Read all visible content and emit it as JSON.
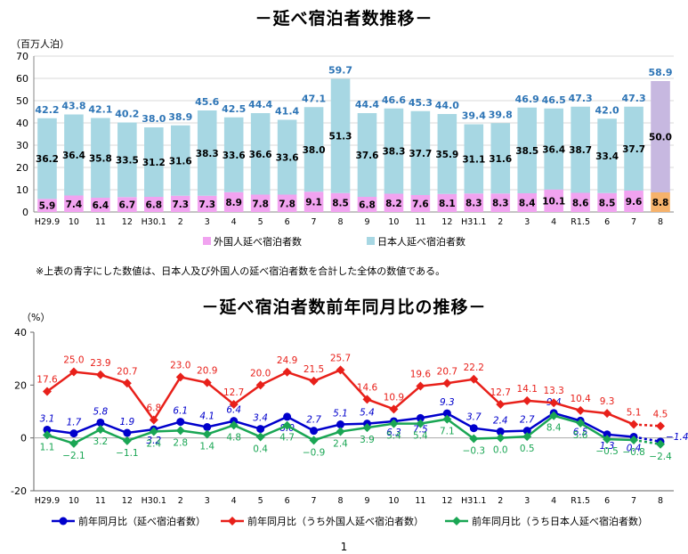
{
  "page_title_1": "－延べ宿泊者数推移－",
  "page_title_2": "－延べ宿泊者数前年同月比の推移－",
  "note": "※上表の青字にした数値は、日本人及び外国人の延べ宿泊者数を合計した全体の数値である。",
  "page_number": "1",
  "colors": {
    "japanese_bar": "#a7d7e3",
    "foreign_bar": "#f1a3f0",
    "japanese_bar_prelim": "#c7b8e0",
    "foreign_bar_prelim": "#f6b26b",
    "total_label": "#2e75b6",
    "series_total": "#0000cc",
    "series_foreign": "#e8201a",
    "series_japanese": "#1aa654"
  },
  "chart_data": [
    {
      "type": "bar",
      "stacked": true,
      "unit_label": "（百万人泊）",
      "categories": [
        "H29.9",
        "10",
        "11",
        "12",
        "H30.1",
        "2",
        "3",
        "4",
        "5",
        "6",
        "7",
        "8",
        "9",
        "10",
        "11",
        "12",
        "H31.1",
        "2",
        "3",
        "4",
        "R1.5",
        "6",
        "7",
        "8"
      ],
      "ylim": [
        0,
        70
      ],
      "yticks": [
        "0",
        "10",
        "20",
        "30",
        "40",
        "50",
        "60",
        "70"
      ],
      "series": [
        {
          "name": "外国人延べ宿泊者数",
          "values": [
            5.9,
            7.4,
            6.4,
            6.7,
            6.8,
            7.3,
            7.3,
            8.9,
            7.8,
            7.8,
            9.1,
            8.5,
            6.8,
            8.2,
            7.6,
            8.1,
            8.3,
            8.3,
            8.4,
            10.1,
            8.6,
            8.5,
            9.6,
            8.8
          ]
        },
        {
          "name": "日本人延べ宿泊者数",
          "values": [
            36.2,
            36.4,
            35.8,
            33.5,
            31.2,
            31.6,
            38.3,
            33.6,
            36.6,
            33.6,
            38.0,
            51.3,
            37.6,
            38.3,
            37.7,
            35.9,
            31.1,
            31.6,
            38.5,
            36.4,
            38.7,
            33.4,
            37.7,
            50.0
          ]
        }
      ],
      "totals": [
        42.2,
        43.8,
        42.1,
        40.2,
        38.0,
        38.9,
        45.6,
        42.5,
        44.4,
        41.4,
        47.1,
        59.7,
        44.4,
        46.6,
        45.3,
        44.0,
        39.4,
        39.8,
        46.9,
        46.5,
        47.3,
        42.0,
        47.3,
        58.9
      ],
      "labels": {
        "foreign": [
          "5.9",
          "7.4",
          "6.4",
          "6.7",
          "6.8",
          "7.3",
          "7.3",
          "8.9",
          "7.8",
          "7.8",
          "9.1",
          "8.5",
          "6.8",
          "8.2",
          "7.6",
          "8.1",
          "8.3",
          "8.3",
          "8.4",
          "10.1",
          "8.6",
          "8.5",
          "9.6",
          "8.8"
        ],
        "japanese": [
          "36.2",
          "36.4",
          "35.8",
          "33.5",
          "31.2",
          "31.6",
          "38.3",
          "33.6",
          "36.6",
          "33.6",
          "38.0",
          "51.3",
          "37.6",
          "38.3",
          "37.7",
          "35.9",
          "31.1",
          "31.6",
          "38.5",
          "36.4",
          "38.7",
          "33.4",
          "37.7",
          "50.0"
        ],
        "total": [
          "42.2",
          "43.8",
          "42.1",
          "40.2",
          "38.0",
          "38.9",
          "45.6",
          "42.5",
          "44.4",
          "41.4",
          "47.1",
          "59.7",
          "44.4",
          "46.6",
          "45.3",
          "44.0",
          "39.4",
          "39.8",
          "46.9",
          "46.5",
          "47.3",
          "42.0",
          "47.3",
          "58.9"
        ]
      },
      "legend": [
        "外国人延べ宿泊者数",
        "日本人延べ宿泊者数"
      ],
      "legend_position": "bottom"
    },
    {
      "type": "line",
      "unit_label": "（%）",
      "categories": [
        "H29.9",
        "10",
        "11",
        "12",
        "H30.1",
        "2",
        "3",
        "4",
        "5",
        "6",
        "7",
        "8",
        "9",
        "10",
        "11",
        "12",
        "H31.1",
        "2",
        "3",
        "4",
        "R1.5",
        "6",
        "7",
        "8"
      ],
      "ylim": [
        -20,
        40
      ],
      "yticks": [
        "-20",
        "0",
        "20",
        "40"
      ],
      "series": [
        {
          "name": "前年同月比（延べ宿泊者数）",
          "values": [
            3.1,
            1.7,
            5.8,
            1.9,
            3.2,
            6.1,
            4.1,
            6.4,
            3.4,
            8.0,
            2.7,
            5.1,
            5.4,
            6.3,
            7.5,
            9.3,
            3.7,
            2.4,
            2.7,
            9.4,
            6.5,
            1.3,
            0.4,
            -1.4
          ],
          "labels": [
            "3.1",
            "1.7",
            "5.8",
            "1.9",
            "3.2",
            "6.1",
            "4.1",
            "6.4",
            "3.4",
            "8.0",
            "2.7",
            "5.1",
            "5.4",
            "6.3",
            "7.5",
            "9.3",
            "3.7",
            "2.4",
            "2.7",
            "9.4",
            "6.5",
            "1.3",
            "0.4",
            "−1.4"
          ]
        },
        {
          "name": "前年同月比（うち外国人延べ宿泊者数）",
          "values": [
            17.6,
            25.0,
            23.9,
            20.7,
            6.8,
            23.0,
            20.9,
            12.7,
            20.0,
            24.9,
            21.5,
            25.7,
            14.6,
            10.9,
            19.6,
            20.7,
            22.2,
            12.7,
            14.1,
            13.3,
            10.4,
            9.3,
            5.1,
            4.5
          ],
          "labels": [
            "17.6",
            "25.0",
            "23.9",
            "20.7",
            "6.8",
            "23.0",
            "20.9",
            "12.7",
            "20.0",
            "24.9",
            "21.5",
            "25.7",
            "14.6",
            "10.9",
            "19.6",
            "20.7",
            "22.2",
            "12.7",
            "14.1",
            "13.3",
            "10.4",
            "9.3",
            "5.1",
            "4.5"
          ]
        },
        {
          "name": "前年同月比（うち日本人延べ宿泊者数）",
          "values": [
            1.1,
            -2.1,
            3.2,
            -1.1,
            2.4,
            2.8,
            1.4,
            4.8,
            0.4,
            4.7,
            -0.9,
            2.4,
            3.9,
            5.4,
            5.4,
            7.1,
            -0.3,
            0.0,
            0.5,
            8.4,
            5.6,
            -0.5,
            -0.8,
            -2.4
          ],
          "labels": [
            "1.1",
            "−2.1",
            "3.2",
            "−1.1",
            "2.4",
            "2.8",
            "1.4",
            "4.8",
            "0.4",
            "4.7",
            "−0.9",
            "2.4",
            "3.9",
            "5.4",
            "5.4",
            "7.1",
            "−0.3",
            "0.0",
            "0.5",
            "8.4",
            "5.6",
            "−0.5",
            "−0.8",
            "−2.4"
          ]
        }
      ],
      "last_segment_dashed": true,
      "legend_position": "bottom"
    }
  ]
}
